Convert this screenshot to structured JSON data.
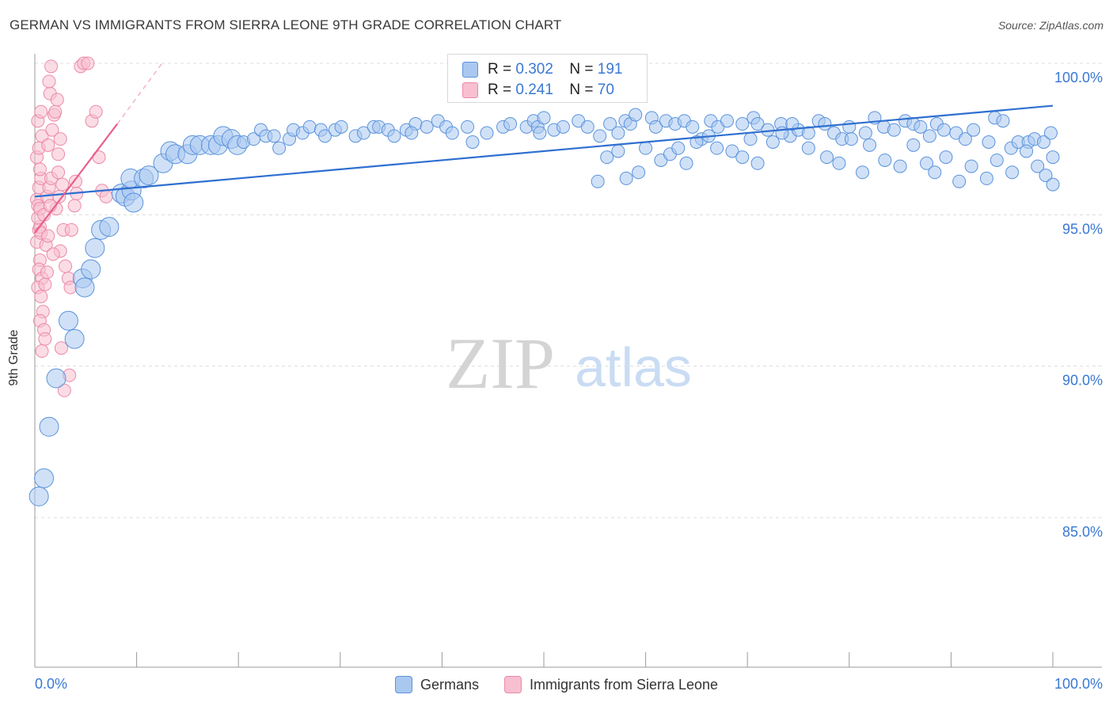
{
  "header": {
    "title": "GERMAN VS IMMIGRANTS FROM SIERRA LEONE 9TH GRADE CORRELATION CHART",
    "source": "Source: ZipAtlas.com"
  },
  "watermark": {
    "zip": "ZIP",
    "atlas": "atlas"
  },
  "legend_top": {
    "rows": [
      {
        "r_label": "R =",
        "r_value": "0.302",
        "n_label": "N =",
        "n_value": "191"
      },
      {
        "r_label": "R =",
        "r_value": "0.241",
        "n_label": "N =",
        "n_value": "70"
      }
    ]
  },
  "legend_bottom": {
    "items": [
      "Germans",
      "Immigrants from Sierra Leone"
    ]
  },
  "colors": {
    "blue_fill": "#a9c8f0",
    "blue_stroke": "#5b93dc",
    "blue_line": "#2f6fd0",
    "pink_fill": "#f7bfd0",
    "pink_stroke": "#ec8aa8",
    "pink_line": "#e8608a",
    "axis_label": "#3a78d4",
    "grid": "#dcdcdc"
  },
  "chart_data": {
    "type": "scatter",
    "title": "GERMAN VS IMMIGRANTS FROM SIERRA LEONE 9TH GRADE CORRELATION CHART",
    "xlabel": "",
    "ylabel": "9th Grade",
    "xlim": [
      0,
      100
    ],
    "ylim": [
      80.5,
      100.9
    ],
    "x_tick_labels": [
      "0.0%",
      "100.0%"
    ],
    "y_ticks": [
      85,
      90,
      95,
      100
    ],
    "y_tick_labels": [
      "85.0%",
      "90.0%",
      "95.0%",
      "100.0%"
    ],
    "grid": true,
    "series": [
      {
        "name": "Germans",
        "r": 0.302,
        "n": 191,
        "trend": {
          "x": [
            0,
            100
          ],
          "y": [
            95.6,
            98.6
          ]
        },
        "points": [
          [
            0.4,
            85.7
          ],
          [
            0.9,
            86.3
          ],
          [
            1.4,
            88.0
          ],
          [
            2.1,
            89.6
          ],
          [
            3.3,
            91.5
          ],
          [
            3.9,
            90.9
          ],
          [
            4.7,
            92.9
          ],
          [
            4.9,
            92.6
          ],
          [
            5.5,
            93.2
          ],
          [
            5.9,
            93.9
          ],
          [
            6.5,
            94.5
          ],
          [
            7.3,
            94.6
          ],
          [
            8.5,
            95.7
          ],
          [
            8.9,
            95.6
          ],
          [
            9.5,
            95.8
          ],
          [
            9.7,
            95.4
          ],
          [
            9.4,
            96.2
          ],
          [
            10.7,
            96.2
          ],
          [
            11.2,
            96.3
          ],
          [
            12.6,
            96.7
          ],
          [
            13.3,
            97.1
          ],
          [
            13.8,
            97.0
          ],
          [
            15.0,
            97.0
          ],
          [
            15.5,
            97.3
          ],
          [
            16.2,
            97.3
          ],
          [
            17.3,
            97.3
          ],
          [
            18.0,
            97.3
          ],
          [
            18.5,
            97.6
          ],
          [
            19.3,
            97.5
          ],
          [
            19.9,
            97.3
          ],
          [
            20.5,
            97.4
          ],
          [
            21.5,
            97.5
          ],
          [
            22.2,
            97.8
          ],
          [
            22.7,
            97.6
          ],
          [
            23.5,
            97.6
          ],
          [
            24.0,
            97.2
          ],
          [
            25.0,
            97.5
          ],
          [
            25.4,
            97.8
          ],
          [
            26.3,
            97.7
          ],
          [
            27.0,
            97.9
          ],
          [
            28.1,
            97.8
          ],
          [
            28.5,
            97.6
          ],
          [
            29.5,
            97.8
          ],
          [
            30.1,
            97.9
          ],
          [
            31.5,
            97.6
          ],
          [
            32.3,
            97.7
          ],
          [
            33.3,
            97.9
          ],
          [
            33.8,
            97.9
          ],
          [
            34.7,
            97.8
          ],
          [
            35.3,
            97.6
          ],
          [
            36.5,
            97.8
          ],
          [
            37.4,
            98.0
          ],
          [
            37.0,
            97.7
          ],
          [
            38.5,
            97.9
          ],
          [
            39.6,
            98.1
          ],
          [
            40.4,
            97.9
          ],
          [
            41.0,
            97.7
          ],
          [
            42.5,
            97.9
          ],
          [
            43.0,
            97.4
          ],
          [
            44.4,
            97.7
          ],
          [
            46.0,
            97.9
          ],
          [
            46.7,
            98.0
          ],
          [
            48.3,
            97.9
          ],
          [
            49.0,
            98.1
          ],
          [
            49.4,
            97.9
          ],
          [
            49.6,
            97.7
          ],
          [
            50.0,
            98.2
          ],
          [
            51.0,
            97.8
          ],
          [
            51.9,
            97.9
          ],
          [
            53.4,
            98.1
          ],
          [
            54.3,
            97.9
          ],
          [
            55.5,
            97.6
          ],
          [
            56.5,
            98.0
          ],
          [
            57.3,
            97.7
          ],
          [
            58.0,
            98.1
          ],
          [
            58.5,
            98.0
          ],
          [
            59.0,
            98.3
          ],
          [
            60.6,
            98.2
          ],
          [
            61.0,
            97.9
          ],
          [
            62.0,
            98.1
          ],
          [
            62.9,
            98.0
          ],
          [
            63.8,
            98.1
          ],
          [
            64.6,
            97.9
          ],
          [
            65.5,
            97.5
          ],
          [
            66.4,
            98.1
          ],
          [
            67.1,
            97.9
          ],
          [
            68.0,
            98.1
          ],
          [
            69.5,
            98.0
          ],
          [
            70.6,
            98.2
          ],
          [
            71.0,
            98.0
          ],
          [
            72.0,
            97.8
          ],
          [
            73.3,
            98.0
          ],
          [
            74.2,
            97.6
          ],
          [
            75.0,
            97.8
          ],
          [
            76.0,
            97.7
          ],
          [
            77.0,
            98.1
          ],
          [
            77.6,
            98.0
          ],
          [
            78.5,
            97.7
          ],
          [
            79.3,
            97.5
          ],
          [
            80.0,
            97.9
          ],
          [
            81.6,
            97.7
          ],
          [
            82.5,
            98.2
          ],
          [
            83.4,
            97.9
          ],
          [
            84.4,
            97.8
          ],
          [
            85.5,
            98.1
          ],
          [
            86.3,
            98.0
          ],
          [
            87.0,
            97.9
          ],
          [
            87.9,
            97.6
          ],
          [
            88.6,
            98.0
          ],
          [
            89.3,
            97.8
          ],
          [
            90.5,
            97.7
          ],
          [
            91.4,
            97.5
          ],
          [
            92.2,
            97.8
          ],
          [
            93.7,
            97.4
          ],
          [
            94.3,
            98.2
          ],
          [
            95.1,
            98.1
          ],
          [
            95.9,
            97.2
          ],
          [
            96.6,
            97.4
          ],
          [
            97.6,
            97.4
          ],
          [
            98.2,
            97.5
          ],
          [
            99.1,
            97.4
          ],
          [
            99.8,
            97.7
          ],
          [
            100.0,
            96.9
          ],
          [
            55.3,
            96.1
          ],
          [
            56.2,
            96.9
          ],
          [
            57.3,
            97.1
          ],
          [
            58.1,
            96.2
          ],
          [
            59.3,
            96.4
          ],
          [
            60.0,
            97.2
          ],
          [
            61.5,
            96.8
          ],
          [
            62.4,
            97.0
          ],
          [
            63.2,
            97.2
          ],
          [
            64.0,
            96.7
          ],
          [
            65.0,
            97.4
          ],
          [
            66.2,
            97.6
          ],
          [
            67.0,
            97.2
          ],
          [
            68.5,
            97.1
          ],
          [
            69.5,
            96.9
          ],
          [
            70.3,
            97.5
          ],
          [
            71.0,
            96.7
          ],
          [
            72.5,
            97.4
          ],
          [
            73.4,
            97.7
          ],
          [
            74.4,
            98.0
          ],
          [
            76.0,
            97.2
          ],
          [
            77.8,
            96.9
          ],
          [
            79.0,
            96.7
          ],
          [
            80.2,
            97.5
          ],
          [
            81.3,
            96.4
          ],
          [
            82.0,
            97.3
          ],
          [
            83.5,
            96.8
          ],
          [
            85.0,
            96.6
          ],
          [
            86.3,
            97.3
          ],
          [
            87.6,
            96.7
          ],
          [
            88.4,
            96.4
          ],
          [
            89.5,
            96.9
          ],
          [
            90.8,
            96.1
          ],
          [
            92.0,
            96.6
          ],
          [
            93.5,
            96.2
          ],
          [
            94.5,
            96.8
          ],
          [
            96.0,
            96.4
          ],
          [
            97.4,
            97.1
          ],
          [
            98.5,
            96.6
          ],
          [
            99.3,
            96.3
          ],
          [
            100.0,
            96.0
          ]
        ]
      },
      {
        "name": "Immigrants from Sierra Leone",
        "r": 0.241,
        "n": 70,
        "trend": {
          "x": [
            0,
            8.1
          ],
          "y": [
            94.4,
            98.0
          ],
          "dashed_to": {
            "x": 12.5,
            "y": 100.0
          }
        },
        "points": [
          [
            0.2,
            95.5
          ],
          [
            0.3,
            95.3
          ],
          [
            0.4,
            94.5
          ],
          [
            0.5,
            94.6
          ],
          [
            0.3,
            94.9
          ],
          [
            0.5,
            95.2
          ],
          [
            0.2,
            94.1
          ],
          [
            0.6,
            94.4
          ],
          [
            0.4,
            95.9
          ],
          [
            0.6,
            96.2
          ],
          [
            0.5,
            96.5
          ],
          [
            0.2,
            96.9
          ],
          [
            0.4,
            97.2
          ],
          [
            0.7,
            97.6
          ],
          [
            0.3,
            98.1
          ],
          [
            0.6,
            98.4
          ],
          [
            0.5,
            93.5
          ],
          [
            0.4,
            93.2
          ],
          [
            0.7,
            92.9
          ],
          [
            0.3,
            92.6
          ],
          [
            0.6,
            92.3
          ],
          [
            0.8,
            91.8
          ],
          [
            0.5,
            91.5
          ],
          [
            0.9,
            91.2
          ],
          [
            1.0,
            90.9
          ],
          [
            0.7,
            90.5
          ],
          [
            1.1,
            94.0
          ],
          [
            1.3,
            94.3
          ],
          [
            1.2,
            95.6
          ],
          [
            1.4,
            95.9
          ],
          [
            1.6,
            96.2
          ],
          [
            1.3,
            97.3
          ],
          [
            1.7,
            97.8
          ],
          [
            1.9,
            98.3
          ],
          [
            1.5,
            99.0
          ],
          [
            1.4,
            99.4
          ],
          [
            1.6,
            99.9
          ],
          [
            2.0,
            98.4
          ],
          [
            2.2,
            98.8
          ],
          [
            2.5,
            97.5
          ],
          [
            2.3,
            96.4
          ],
          [
            2.7,
            96.0
          ],
          [
            2.1,
            95.2
          ],
          [
            2.4,
            95.6
          ],
          [
            2.8,
            94.5
          ],
          [
            2.5,
            93.8
          ],
          [
            3.0,
            93.3
          ],
          [
            3.3,
            92.9
          ],
          [
            3.5,
            92.6
          ],
          [
            2.6,
            90.6
          ],
          [
            2.9,
            89.2
          ],
          [
            3.4,
            89.7
          ],
          [
            3.6,
            94.5
          ],
          [
            3.9,
            95.3
          ],
          [
            4.0,
            96.1
          ],
          [
            4.1,
            95.7
          ],
          [
            4.5,
            99.9
          ],
          [
            4.8,
            100.0
          ],
          [
            5.2,
            100.0
          ],
          [
            5.6,
            98.1
          ],
          [
            6.0,
            98.4
          ],
          [
            6.3,
            96.9
          ],
          [
            6.6,
            95.8
          ],
          [
            7.0,
            95.6
          ],
          [
            1.0,
            92.7
          ],
          [
            1.2,
            93.1
          ],
          [
            1.8,
            93.7
          ],
          [
            0.9,
            95.0
          ],
          [
            1.5,
            95.3
          ],
          [
            2.3,
            97.0
          ]
        ]
      }
    ]
  }
}
